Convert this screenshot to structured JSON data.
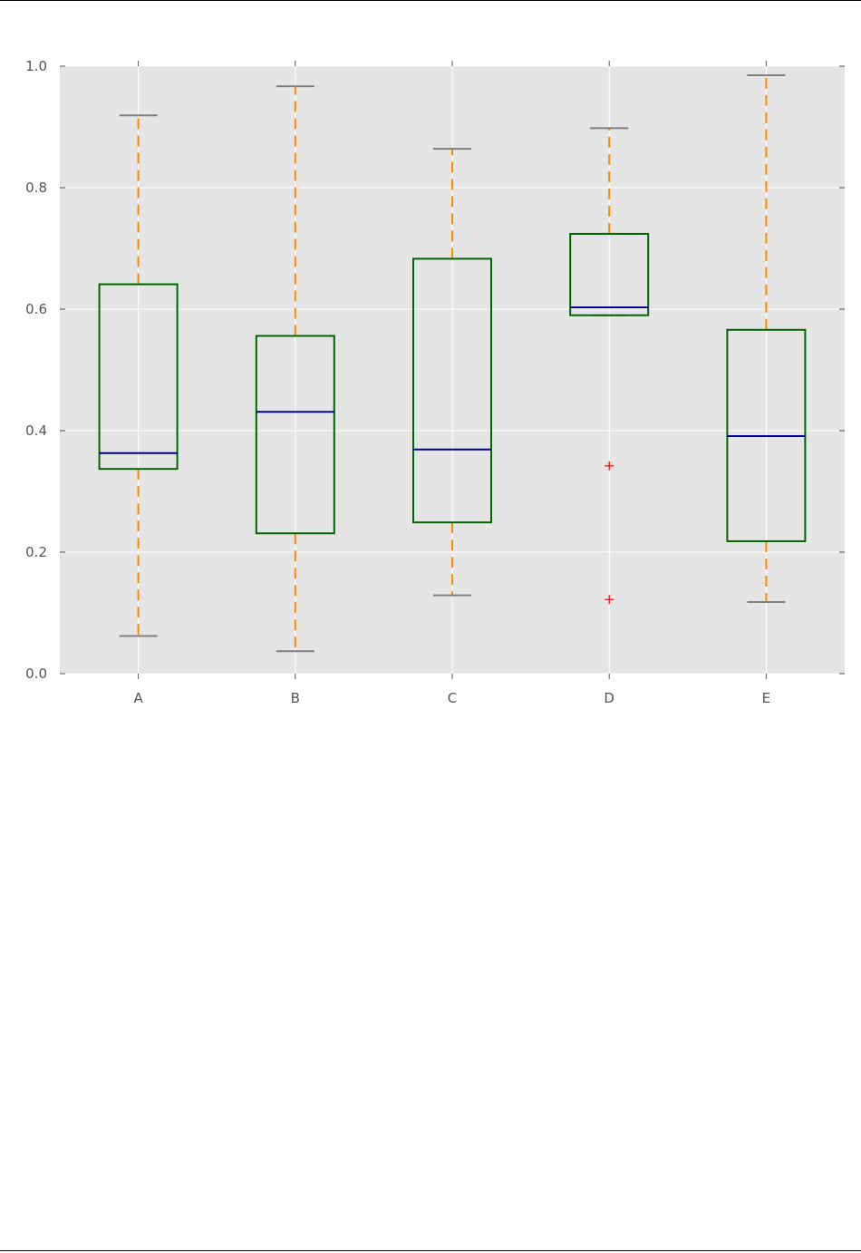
{
  "chart_data": {
    "type": "box",
    "title": "",
    "xlabel": "",
    "ylabel": "",
    "ylim": [
      0.0,
      1.0
    ],
    "y_ticks": [
      "0.0",
      "0.2",
      "0.4",
      "0.6",
      "0.8",
      "1.0"
    ],
    "y_tick_values": [
      0.0,
      0.2,
      0.4,
      0.6,
      0.8,
      1.0
    ],
    "grid": true,
    "legend": "none",
    "categories": [
      "A",
      "B",
      "C",
      "D",
      "E"
    ],
    "boxes": [
      {
        "label": "A",
        "whisker_low": 0.062,
        "q1": 0.337,
        "median": 0.363,
        "q3": 0.641,
        "whisker_high": 0.919,
        "outliers": []
      },
      {
        "label": "B",
        "whisker_low": 0.037,
        "q1": 0.231,
        "median": 0.431,
        "q3": 0.556,
        "whisker_high": 0.967,
        "outliers": []
      },
      {
        "label": "C",
        "whisker_low": 0.129,
        "q1": 0.249,
        "median": 0.369,
        "q3": 0.683,
        "whisker_high": 0.864,
        "outliers": []
      },
      {
        "label": "D",
        "whisker_low": 0.59,
        "q1": 0.59,
        "median": 0.603,
        "q3": 0.724,
        "whisker_high": 0.898,
        "outliers": [
          0.342,
          0.122
        ]
      },
      {
        "label": "E",
        "whisker_low": 0.118,
        "q1": 0.218,
        "median": 0.391,
        "q3": 0.566,
        "whisker_high": 0.985,
        "outliers": []
      }
    ],
    "colors": {
      "plot_background": "#e5e5e5",
      "grid": "#ffffff",
      "box": "#006400",
      "median": "#00008b",
      "whisker": "#ff8c00",
      "cap": "#808080",
      "outlier": "#ff0000",
      "tick": "#555555"
    }
  }
}
